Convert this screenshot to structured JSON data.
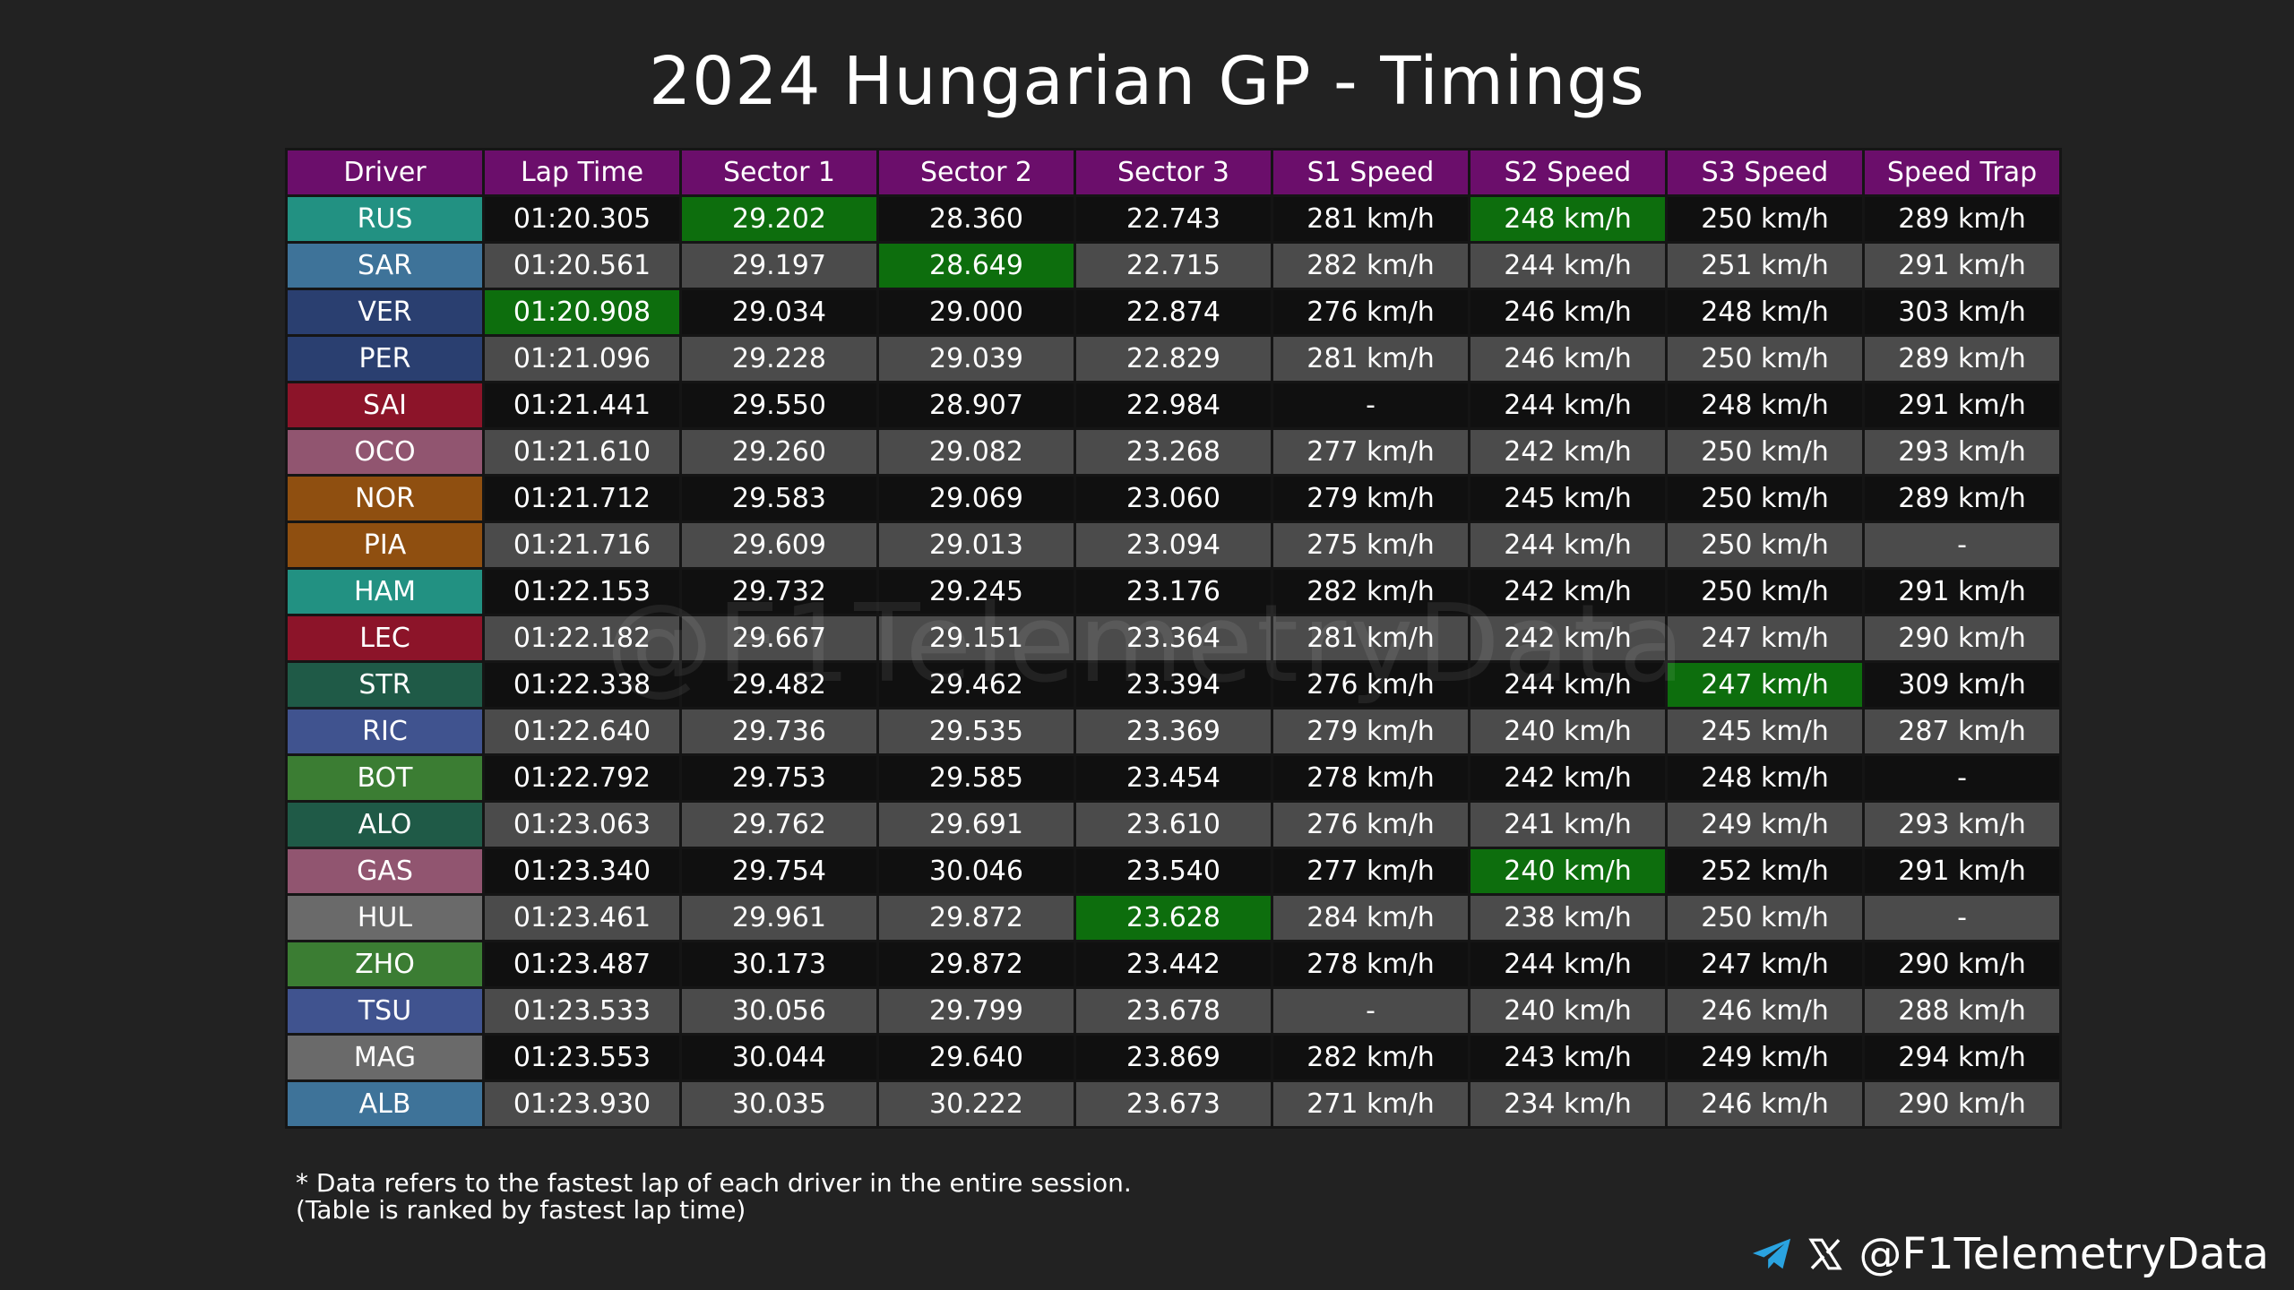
{
  "title": "2024 Hungarian GP - Timings",
  "watermark": "@F1TelemetryData",
  "columns": [
    "Driver",
    "Lap Time",
    "Sector 1",
    "Sector 2",
    "Sector 3",
    "S1 Speed",
    "S2 Speed",
    "S3 Speed",
    "Speed Trap"
  ],
  "chart_data": {
    "type": "table",
    "title": "2024 Hungarian GP - Timings",
    "columns": [
      "Driver",
      "Lap Time",
      "Sector 1",
      "Sector 2",
      "Sector 3",
      "S1 Speed",
      "S2 Speed",
      "S3 Speed",
      "Speed Trap"
    ],
    "rows": [
      {
        "driver": "RUS",
        "team_color": "#229182",
        "cells": [
          "01:20.305",
          "29.202",
          "28.360",
          "22.743",
          "281 km/h",
          "248 km/h",
          "250 km/h",
          "289 km/h"
        ],
        "best": [
          2,
          6
        ]
      },
      {
        "driver": "SAR",
        "team_color": "#3e7399",
        "cells": [
          "01:20.561",
          "29.197",
          "28.649",
          "22.715",
          "282 km/h",
          "244 km/h",
          "251 km/h",
          "291 km/h"
        ],
        "best": [
          3
        ]
      },
      {
        "driver": "VER",
        "team_color": "#2a3f70",
        "cells": [
          "01:20.908",
          "29.034",
          "29.000",
          "22.874",
          "276 km/h",
          "246 km/h",
          "248 km/h",
          "303 km/h"
        ],
        "best": [
          1
        ]
      },
      {
        "driver": "PER",
        "team_color": "#2a3f70",
        "cells": [
          "01:21.096",
          "29.228",
          "29.039",
          "22.829",
          "281 km/h",
          "246 km/h",
          "250 km/h",
          "289 km/h"
        ],
        "best": []
      },
      {
        "driver": "SAI",
        "team_color": "#8c1429",
        "cells": [
          "01:21.441",
          "29.550",
          "28.907",
          "22.984",
          "-",
          "244 km/h",
          "248 km/h",
          "291 km/h"
        ],
        "best": []
      },
      {
        "driver": "OCO",
        "team_color": "#915570",
        "cells": [
          "01:21.610",
          "29.260",
          "29.082",
          "23.268",
          "277 km/h",
          "242 km/h",
          "250 km/h",
          "293 km/h"
        ],
        "best": []
      },
      {
        "driver": "NOR",
        "team_color": "#8f4f10",
        "cells": [
          "01:21.712",
          "29.583",
          "29.069",
          "23.060",
          "279 km/h",
          "245 km/h",
          "250 km/h",
          "289 km/h"
        ],
        "best": []
      },
      {
        "driver": "PIA",
        "team_color": "#8f4f10",
        "cells": [
          "01:21.716",
          "29.609",
          "29.013",
          "23.094",
          "275 km/h",
          "244 km/h",
          "250 km/h",
          "-"
        ],
        "best": []
      },
      {
        "driver": "HAM",
        "team_color": "#229182",
        "cells": [
          "01:22.153",
          "29.732",
          "29.245",
          "23.176",
          "282 km/h",
          "242 km/h",
          "250 km/h",
          "291 km/h"
        ],
        "best": []
      },
      {
        "driver": "LEC",
        "team_color": "#8c1429",
        "cells": [
          "01:22.182",
          "29.667",
          "29.151",
          "23.364",
          "281 km/h",
          "242 km/h",
          "247 km/h",
          "290 km/h"
        ],
        "best": []
      },
      {
        "driver": "STR",
        "team_color": "#1f5a47",
        "cells": [
          "01:22.338",
          "29.482",
          "29.462",
          "23.394",
          "276 km/h",
          "244 km/h",
          "247 km/h",
          "309 km/h"
        ],
        "best": [
          7
        ]
      },
      {
        "driver": "RIC",
        "team_color": "#40538f",
        "cells": [
          "01:22.640",
          "29.736",
          "29.535",
          "23.369",
          "279 km/h",
          "240 km/h",
          "245 km/h",
          "287 km/h"
        ],
        "best": []
      },
      {
        "driver": "BOT",
        "team_color": "#3b7d33",
        "cells": [
          "01:22.792",
          "29.753",
          "29.585",
          "23.454",
          "278 km/h",
          "242 km/h",
          "248 km/h",
          "-"
        ],
        "best": []
      },
      {
        "driver": "ALO",
        "team_color": "#1f5a47",
        "cells": [
          "01:23.063",
          "29.762",
          "29.691",
          "23.610",
          "276 km/h",
          "241 km/h",
          "249 km/h",
          "293 km/h"
        ],
        "best": []
      },
      {
        "driver": "GAS",
        "team_color": "#915570",
        "cells": [
          "01:23.340",
          "29.754",
          "30.046",
          "23.540",
          "277 km/h",
          "240 km/h",
          "252 km/h",
          "291 km/h"
        ],
        "best": [
          6
        ]
      },
      {
        "driver": "HUL",
        "team_color": "#6a6a6a",
        "cells": [
          "01:23.461",
          "29.961",
          "29.872",
          "23.628",
          "284 km/h",
          "238 km/h",
          "250 km/h",
          "-"
        ],
        "best": [
          4
        ]
      },
      {
        "driver": "ZHO",
        "team_color": "#3b7d33",
        "cells": [
          "01:23.487",
          "30.173",
          "29.872",
          "23.442",
          "278 km/h",
          "244 km/h",
          "247 km/h",
          "290 km/h"
        ],
        "best": []
      },
      {
        "driver": "TSU",
        "team_color": "#40538f",
        "cells": [
          "01:23.533",
          "30.056",
          "29.799",
          "23.678",
          "-",
          "240 km/h",
          "246 km/h",
          "288 km/h"
        ],
        "best": []
      },
      {
        "driver": "MAG",
        "team_color": "#6a6a6a",
        "cells": [
          "01:23.553",
          "30.044",
          "29.640",
          "23.869",
          "282 km/h",
          "243 km/h",
          "249 km/h",
          "294 km/h"
        ],
        "best": []
      },
      {
        "driver": "ALB",
        "team_color": "#3e7399",
        "cells": [
          "01:23.930",
          "30.035",
          "30.222",
          "23.673",
          "271 km/h",
          "234 km/h",
          "246 km/h",
          "290 km/h"
        ],
        "best": []
      }
    ]
  },
  "notes": {
    "line1": "* Data refers to the fastest lap of each driver in the entire session.",
    "line2": "(Table is ranked by fastest lap time)"
  },
  "footer": {
    "handle": "@F1TelemetryData",
    "telegram_icon": "telegram-icon",
    "x_icon": "x-logo-icon"
  },
  "colors": {
    "background": "#222222",
    "header": "#6b0e6b",
    "best": "#0d6e0d",
    "row_dark": "#101010",
    "row_light": "#4b4b4b",
    "telegram": "#2aa3e0"
  }
}
